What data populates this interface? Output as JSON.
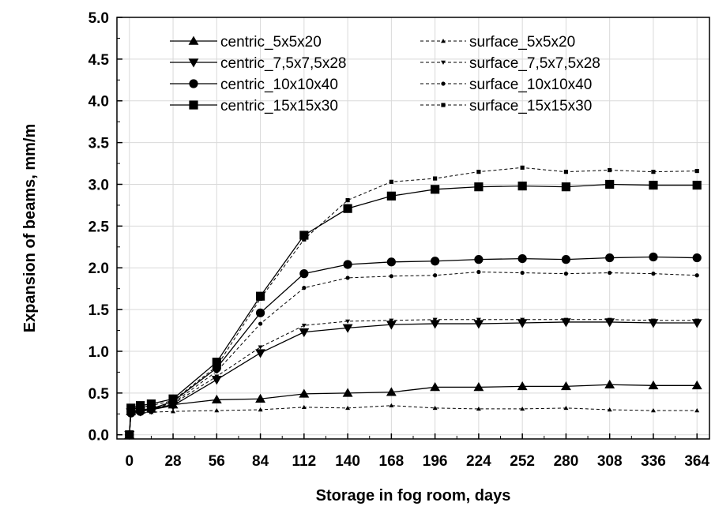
{
  "chart_data": {
    "type": "line",
    "xlabel": "Storage in fog room, days",
    "ylabel": "Expansion of beams, mm/m",
    "xlim": [
      -8,
      372
    ],
    "ylim": [
      -0.05,
      5.0
    ],
    "xticks": [
      0,
      28,
      56,
      84,
      112,
      140,
      168,
      196,
      224,
      252,
      280,
      308,
      336,
      364
    ],
    "yticks": [
      0.0,
      0.5,
      1.0,
      1.5,
      2.0,
      2.5,
      3.0,
      3.5,
      4.0,
      4.5,
      5.0
    ],
    "grid": true,
    "legend_position": "top",
    "x": [
      0,
      1,
      7,
      14,
      28,
      56,
      84,
      112,
      140,
      168,
      196,
      224,
      252,
      280,
      308,
      336,
      364
    ],
    "series": [
      {
        "name": "centric_5x5x20",
        "style": "solid",
        "marker": "triangle-up",
        "color": "#000000",
        "values": [
          0.0,
          0.28,
          0.3,
          0.31,
          0.36,
          0.42,
          0.43,
          0.49,
          0.5,
          0.51,
          0.57,
          0.57,
          0.58,
          0.58,
          0.6,
          0.59,
          0.59
        ]
      },
      {
        "name": "centric_7,5x7,5x28",
        "style": "solid",
        "marker": "triangle-down",
        "color": "#000000",
        "values": [
          0.0,
          0.27,
          0.28,
          0.3,
          0.35,
          0.66,
          0.98,
          1.23,
          1.28,
          1.32,
          1.33,
          1.33,
          1.34,
          1.35,
          1.35,
          1.34,
          1.34
        ]
      },
      {
        "name": "centric_10x10x40",
        "style": "solid",
        "marker": "circle",
        "color": "#000000",
        "values": [
          0.0,
          0.26,
          0.28,
          0.31,
          0.4,
          0.8,
          1.46,
          1.93,
          2.04,
          2.07,
          2.08,
          2.1,
          2.11,
          2.1,
          2.12,
          2.13,
          2.12
        ]
      },
      {
        "name": "centric_15x15x30",
        "style": "solid",
        "marker": "square",
        "color": "#000000",
        "values": [
          0.0,
          0.32,
          0.35,
          0.37,
          0.43,
          0.87,
          1.66,
          2.39,
          2.71,
          2.86,
          2.94,
          2.97,
          2.98,
          2.97,
          3.0,
          2.99,
          2.99
        ]
      },
      {
        "name": "surface_5x5x20",
        "style": "dashed",
        "marker": "triangle-up",
        "color": "#000000",
        "values": [
          0.0,
          0.25,
          0.26,
          0.27,
          0.28,
          0.29,
          0.3,
          0.33,
          0.32,
          0.35,
          0.32,
          0.31,
          0.31,
          0.32,
          0.3,
          0.29,
          0.29
        ]
      },
      {
        "name": "surface_7,5x7,5x28",
        "style": "dashed",
        "marker": "triangle-down",
        "color": "#000000",
        "values": [
          0.0,
          0.28,
          0.29,
          0.31,
          0.37,
          0.7,
          1.05,
          1.31,
          1.36,
          1.37,
          1.38,
          1.38,
          1.38,
          1.38,
          1.38,
          1.37,
          1.37
        ]
      },
      {
        "name": "surface_10x10x40",
        "style": "dashed",
        "marker": "circle",
        "color": "#000000",
        "values": [
          0.0,
          0.27,
          0.29,
          0.32,
          0.38,
          0.76,
          1.33,
          1.76,
          1.88,
          1.9,
          1.91,
          1.95,
          1.94,
          1.93,
          1.94,
          1.93,
          1.91
        ]
      },
      {
        "name": "surface_15x15x30",
        "style": "dashed",
        "marker": "square",
        "color": "#000000",
        "values": [
          0.0,
          0.3,
          0.33,
          0.35,
          0.41,
          0.82,
          1.63,
          2.34,
          2.81,
          3.03,
          3.07,
          3.15,
          3.2,
          3.15,
          3.17,
          3.15,
          3.16
        ]
      }
    ]
  }
}
